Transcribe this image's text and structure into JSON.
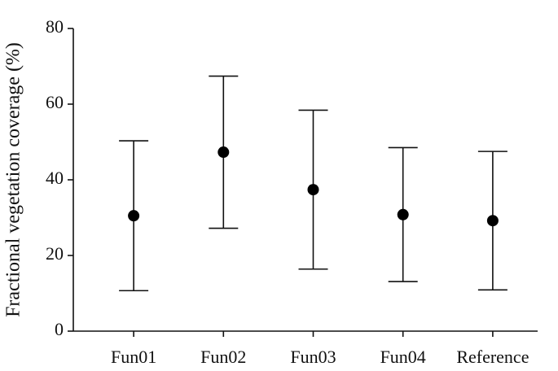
{
  "chart_data": {
    "type": "errorbar",
    "y_label": "Fractional vegetation coverage (%)",
    "categories": [
      "Fun01",
      "Fun02",
      "Fun03",
      "Fun04",
      "Reference"
    ],
    "values": [
      30.5,
      47.3,
      37.4,
      30.8,
      29.2
    ],
    "errors": [
      19.8,
      20.1,
      21.0,
      17.7,
      18.3
    ],
    "color": "#000000",
    "ylim": [
      0,
      80
    ],
    "yticks": [
      0,
      20,
      40,
      60,
      80
    ],
    "grid": false
  }
}
